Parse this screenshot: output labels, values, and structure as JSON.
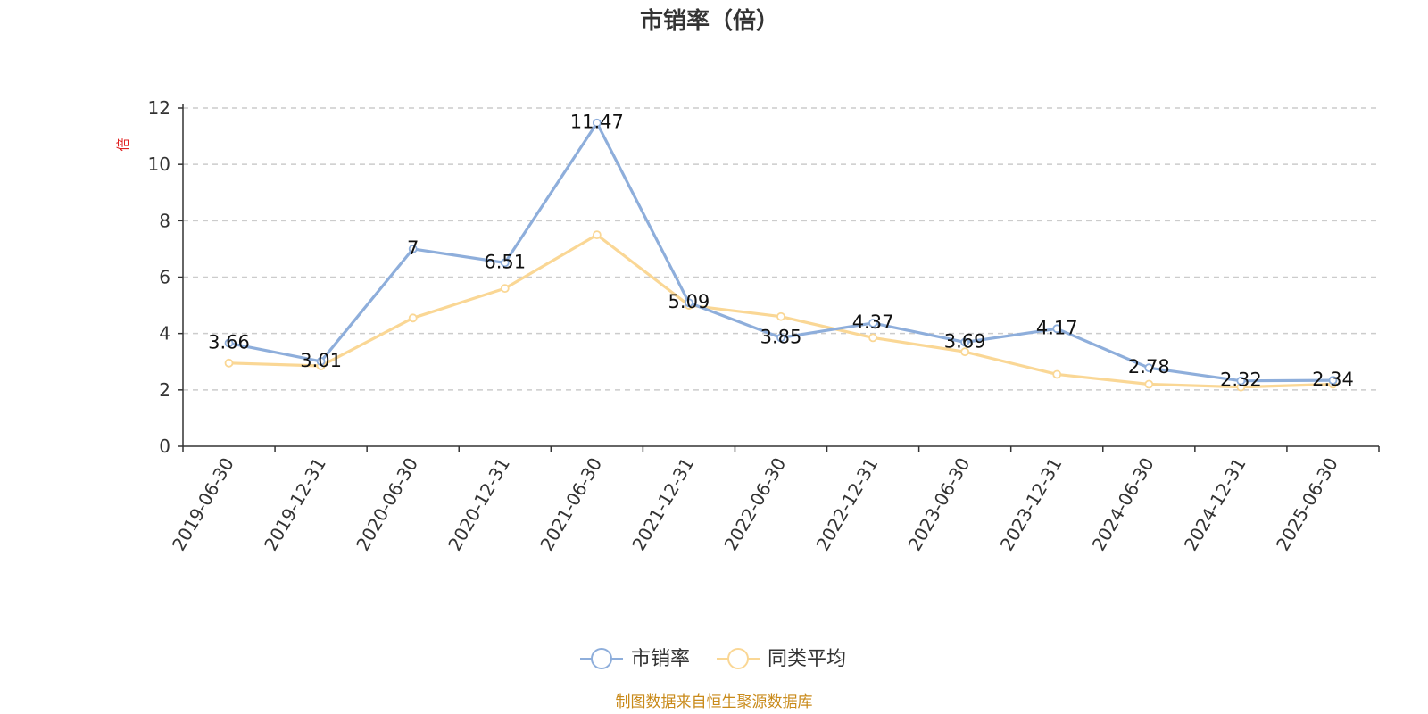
{
  "chart_data": {
    "type": "line",
    "title": "市销率（倍）",
    "ylabel": "倍",
    "xlabel": "",
    "categories": [
      "2019-06-30",
      "2019-12-31",
      "2020-06-30",
      "2020-12-31",
      "2021-06-30",
      "2021-12-31",
      "2022-06-30",
      "2022-12-31",
      "2023-06-30",
      "2023-12-31",
      "2024-06-30",
      "2024-12-31",
      "2025-06-30"
    ],
    "ylim": [
      0,
      12
    ],
    "yticks": [
      "0",
      "2",
      "4",
      "6",
      "8",
      "10",
      "12"
    ],
    "grid": true,
    "legend_position": "bottom",
    "series": [
      {
        "name": "市销率",
        "color": "#8eaedb",
        "values": [
          3.66,
          3.01,
          7,
          6.51,
          11.47,
          5.09,
          3.85,
          4.37,
          3.69,
          4.17,
          2.78,
          2.32,
          2.34
        ],
        "labels": [
          "3.66",
          "3.01",
          "7",
          "6.51",
          "11.47",
          "5.09",
          "3.85",
          "4.37",
          "3.69",
          "4.17",
          "2.78",
          "2.32",
          "2.34"
        ]
      },
      {
        "name": "同类平均",
        "color": "#fad795",
        "values": [
          2.95,
          2.85,
          4.55,
          5.6,
          7.5,
          5.0,
          4.6,
          3.85,
          3.35,
          2.55,
          2.2,
          2.1,
          2.2
        ]
      }
    ]
  },
  "footer": {
    "source_text": "制图数据来自恒生聚源数据库",
    "color": "#c98a1a"
  },
  "unit_color": "#e02020"
}
